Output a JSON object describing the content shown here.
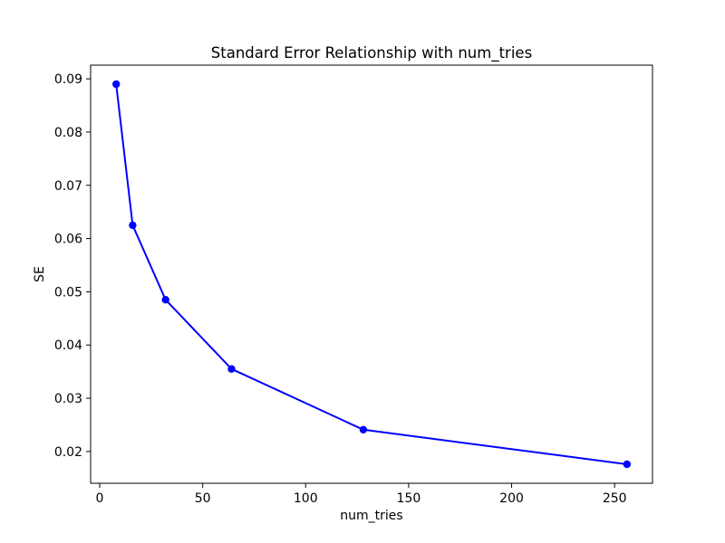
{
  "chart_data": {
    "type": "line",
    "title": "Standard Error Relationship with num_tries",
    "xlabel": "num_tries",
    "ylabel": "SE",
    "x": [
      8,
      16,
      32,
      64,
      128,
      256
    ],
    "y": [
      0.089,
      0.0625,
      0.0485,
      0.0355,
      0.0241,
      0.0176
    ],
    "series": [
      {
        "name": "SE",
        "x": [
          8,
          16,
          32,
          64,
          128,
          256
        ],
        "values": [
          0.089,
          0.0625,
          0.0485,
          0.0355,
          0.0241,
          0.0176
        ]
      }
    ],
    "xticks": [
      0,
      50,
      100,
      150,
      200,
      250
    ],
    "yticks": [
      0.02,
      0.03,
      0.04,
      0.05,
      0.06,
      0.07,
      0.08,
      0.09
    ],
    "xlim": [
      -4.4,
      268.4
    ],
    "ylim": [
      0.01403,
      0.09257
    ],
    "grid": false,
    "legend_position": "none",
    "line_color": "#0000ff",
    "marker_color": "#0000ff",
    "marker": "o",
    "axis_color": "#000000",
    "background_color": "#ffffff"
  }
}
